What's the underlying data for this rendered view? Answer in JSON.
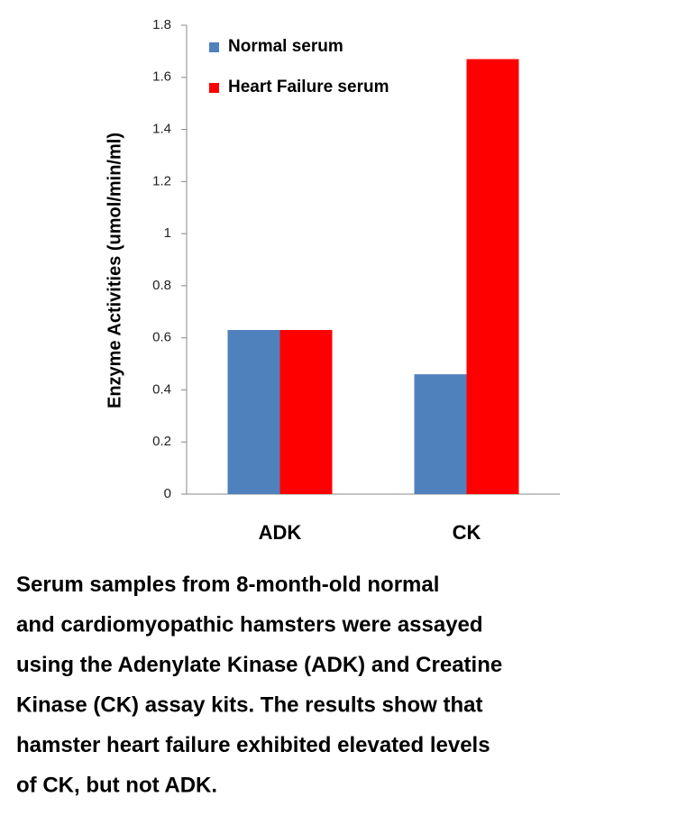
{
  "chart_data": {
    "type": "bar",
    "y_label": "Enzyme Activities (umol/min/ml)",
    "categories": [
      "ADK",
      "CK"
    ],
    "series": [
      {
        "name": "Normal serum",
        "color": "#4f81bd",
        "values": [
          0.63,
          0.46
        ]
      },
      {
        "name": "Heart Failure serum",
        "color": "#ff0000",
        "values": [
          0.63,
          1.67
        ]
      }
    ],
    "ylim": [
      0,
      1.8
    ],
    "yticks": [
      0,
      0.2,
      0.4,
      0.6,
      0.8,
      1,
      1.2,
      1.4,
      1.6,
      1.8
    ],
    "grid": false,
    "legend": "top-left"
  },
  "caption": [
    "Serum samples from 8-month-old normal",
    "and cardiomyopathic hamsters were assayed",
    "using the Adenylate Kinase (ADK) and Creatine",
    "Kinase (CK) assay kits. The results show that",
    "hamster heart failure exhibited elevated levels",
    "of CK, but not ADK."
  ]
}
